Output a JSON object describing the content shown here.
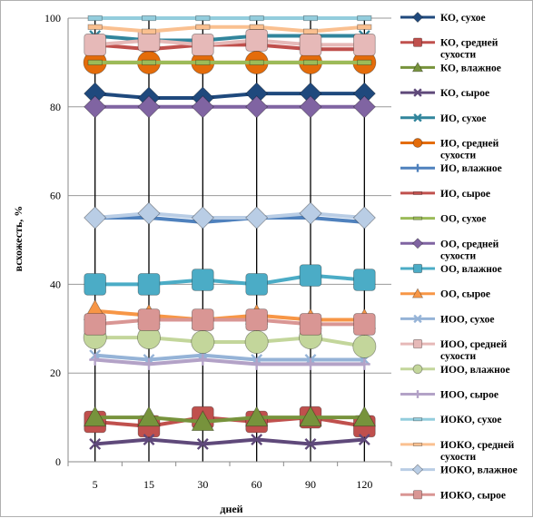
{
  "chart_data": {
    "type": "line",
    "title": "",
    "xlabel": "дней",
    "ylabel": "всхожесть, %",
    "categories": [
      "5",
      "15",
      "30",
      "60",
      "90",
      "120"
    ],
    "ylim": [
      0,
      100
    ],
    "yticks": [
      0,
      20,
      40,
      60,
      80,
      100
    ],
    "grid": true,
    "legend_position": "right",
    "series": [
      {
        "name": "КО, сухое",
        "values": [
          83,
          82,
          82,
          83,
          83,
          83
        ],
        "color": "#1F497D",
        "marker": "diamond"
      },
      {
        "name": "КО, средней сухости",
        "values": [
          9,
          8,
          10,
          9,
          10,
          8
        ],
        "color": "#C0504D",
        "marker": "square"
      },
      {
        "name": "КО, влажное",
        "values": [
          10,
          10,
          9,
          10,
          10,
          10
        ],
        "color": "#77933C",
        "marker": "triangle"
      },
      {
        "name": "КО, сырое",
        "values": [
          4,
          5,
          4,
          5,
          4,
          5
        ],
        "color": "#5F497A",
        "marker": "x"
      },
      {
        "name": "ИО, сухое",
        "values": [
          96,
          95,
          95,
          96,
          96,
          96
        ],
        "color": "#31859C",
        "marker": "x"
      },
      {
        "name": "ИО, средней сухости",
        "values": [
          90,
          90,
          90,
          90,
          90,
          90
        ],
        "color": "#E46C0A",
        "marker": "circle"
      },
      {
        "name": "ИО, влажное",
        "values": [
          55,
          55,
          54,
          55,
          55,
          54
        ],
        "color": "#4F81BD",
        "marker": "plus"
      },
      {
        "name": "ИО, сырое",
        "values": [
          94,
          93,
          94,
          94,
          93,
          93
        ],
        "color": "#C0504D",
        "marker": "dash"
      },
      {
        "name": "ОО, сухое",
        "values": [
          90,
          90,
          90,
          90,
          90,
          90
        ],
        "color": "#9BBB59",
        "marker": "dash"
      },
      {
        "name": "ОО, средней сухости",
        "values": [
          80,
          80,
          80,
          80,
          80,
          80
        ],
        "color": "#8064A2",
        "marker": "diamond"
      },
      {
        "name": "ОО, влажное",
        "values": [
          40,
          40,
          41,
          40,
          42,
          41
        ],
        "color": "#4BACC6",
        "marker": "square"
      },
      {
        "name": "ОО, сырое",
        "values": [
          34,
          33,
          32,
          33,
          32,
          32
        ],
        "color": "#F79646",
        "marker": "triangle"
      },
      {
        "name": "ИОО, сухое",
        "values": [
          24,
          23,
          24,
          23,
          23,
          23
        ],
        "color": "#95B3D7",
        "marker": "x"
      },
      {
        "name": "ИОО, средней сухости",
        "values": [
          94,
          95,
          94,
          95,
          94,
          94
        ],
        "color": "#E6B9B8",
        "marker": "square"
      },
      {
        "name": "ИОО, влажное",
        "values": [
          28,
          28,
          27,
          27,
          28,
          26
        ],
        "color": "#C3D69B",
        "marker": "circle"
      },
      {
        "name": "ИОО, сырое",
        "values": [
          23,
          22,
          23,
          22,
          22,
          22
        ],
        "color": "#B3A2C7",
        "marker": "plus"
      },
      {
        "name": "ИОКО, сухое",
        "values": [
          100,
          100,
          100,
          100,
          100,
          100
        ],
        "color": "#93CDDD",
        "marker": "dash"
      },
      {
        "name": "ИОКО, средней сухости",
        "values": [
          98,
          97,
          98,
          98,
          97,
          98
        ],
        "color": "#FAC090",
        "marker": "dash"
      },
      {
        "name": "ИОКО, влажное",
        "values": [
          55,
          56,
          55,
          55,
          56,
          55
        ],
        "color": "#B9CDE5",
        "marker": "diamond"
      },
      {
        "name": "ИОКО, сырое",
        "values": [
          31,
          32,
          32,
          32,
          31,
          31
        ],
        "color": "#D99694",
        "marker": "square"
      }
    ]
  }
}
